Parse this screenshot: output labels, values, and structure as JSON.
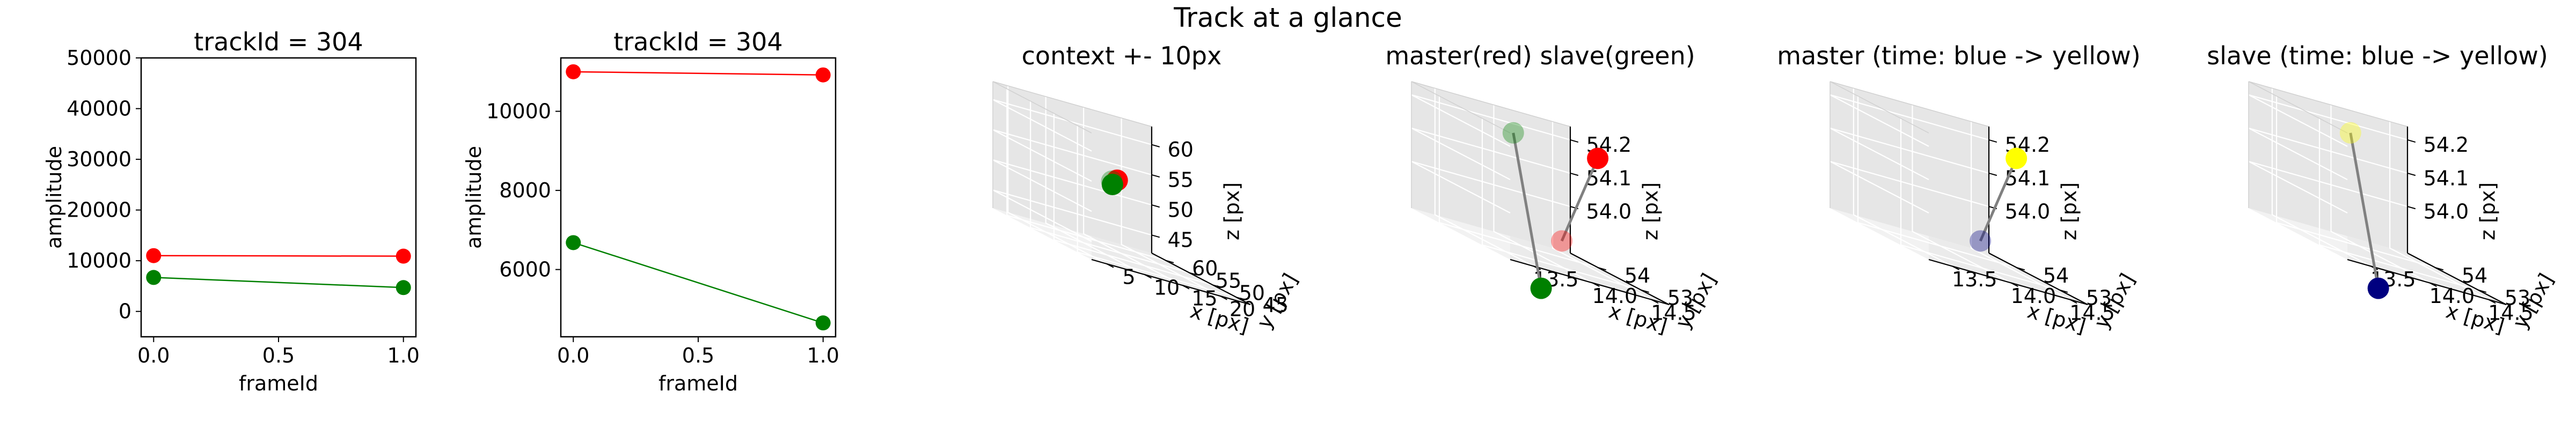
{
  "figure_title": "Track at a glance",
  "colors": {
    "red": "#ff0000",
    "green": "#008000",
    "gray": "#808080",
    "pane_left": "#f2f2f2",
    "pane_right": "#e6e6e6",
    "pane_floor": "#ebebeb"
  },
  "chart_data": [
    {
      "type": "line",
      "title": "trackId = 304",
      "xlabel": "frameId",
      "ylabel": "amplitude",
      "xlim": [
        -0.05,
        1.05
      ],
      "ylim": [
        -5000,
        50000
      ],
      "x_ticks": [
        0.0,
        0.5,
        1.0
      ],
      "x_tick_labels": [
        "0.0",
        "0.5",
        "1.0"
      ],
      "y_ticks": [
        0,
        10000,
        20000,
        30000,
        40000,
        50000
      ],
      "y_tick_labels": [
        "0",
        "10000",
        "20000",
        "30000",
        "40000",
        "50000"
      ],
      "series": [
        {
          "x": [
            0.0,
            1.0
          ],
          "values": [
            11000,
            10900
          ],
          "color": "#ff0000"
        },
        {
          "x": [
            0.0,
            1.0
          ],
          "values": [
            6700,
            4700
          ],
          "color": "#008000"
        }
      ]
    },
    {
      "type": "line",
      "title": "trackId = 304",
      "xlabel": "frameId",
      "ylabel": "amplitude",
      "xlim": [
        -0.05,
        1.05
      ],
      "ylim": [
        4300,
        11350
      ],
      "x_ticks": [
        0.0,
        0.5,
        1.0
      ],
      "x_tick_labels": [
        "0.0",
        "0.5",
        "1.0"
      ],
      "y_ticks": [
        6000,
        8000,
        10000
      ],
      "y_tick_labels": [
        "6000",
        "8000",
        "10000"
      ],
      "series": [
        {
          "x": [
            0.0,
            1.0
          ],
          "values": [
            11000,
            10920
          ],
          "color": "#ff0000"
        },
        {
          "x": [
            0.0,
            1.0
          ],
          "values": [
            6680,
            4650
          ],
          "color": "#008000"
        }
      ]
    },
    {
      "type": "scatter3d",
      "title": "context +- 10px",
      "xlabel": "x [px]",
      "ylabel": "y [px]",
      "zlabel": "z [px]",
      "xlim": [
        3,
        24
      ],
      "ylim": [
        42,
        63
      ],
      "zlim": [
        42,
        63
      ],
      "x_ticks": [
        5,
        10,
        15,
        20
      ],
      "x_tick_labels": [
        "5",
        "10",
        "15",
        "20"
      ],
      "y_ticks": [
        45,
        50,
        55,
        60
      ],
      "y_tick_labels": [
        "45",
        "50",
        "55",
        "60"
      ],
      "z_ticks": [
        45,
        50,
        55,
        60
      ],
      "z_tick_labels": [
        "45",
        "50",
        "55",
        "60"
      ],
      "points": [
        {
          "x": 13.6,
          "y": 53.6,
          "z": 54.2,
          "color": "#ff0000",
          "alpha": 1.0
        },
        {
          "x": 13.9,
          "y": 54.2,
          "z": 54.1,
          "color": "#ff0000",
          "alpha": 0.35
        },
        {
          "x": 12.5,
          "y": 53.0,
          "z": 53.9,
          "color": "#008000",
          "alpha": 0.35
        },
        {
          "x": 12.6,
          "y": 53.0,
          "z": 53.4,
          "color": "#008000",
          "alpha": 1.0
        }
      ],
      "segments": []
    },
    {
      "type": "scatter3d",
      "title": "master(red) slave(green)",
      "xlabel": "x [px]",
      "ylabel": "y [px]",
      "zlabel": "z [px]",
      "xlim": [
        13.3,
        14.65
      ],
      "ylim": [
        52.35,
        54.65
      ],
      "zlim": [
        53.86,
        54.24
      ],
      "x_ticks": [
        13.5,
        14.0,
        14.5
      ],
      "x_tick_labels": [
        "13.5",
        "14.0",
        "14.5"
      ],
      "y_ticks": [
        53,
        54
      ],
      "y_tick_labels": [
        "53",
        "54"
      ],
      "z_ticks": [
        54.0,
        54.1,
        54.2
      ],
      "z_tick_labels": [
        "54.0",
        "54.1",
        "54.2"
      ],
      "points": [
        {
          "x": 14.5,
          "y": 53.6,
          "z": 54.2,
          "color": "#ff0000",
          "alpha": 1.0
        },
        {
          "x": 14.45,
          "y": 54.3,
          "z": 53.9,
          "color": "#ff0000",
          "alpha": 0.35
        },
        {
          "x": 13.6,
          "y": 53.1,
          "z": 54.22,
          "color": "#008000",
          "alpha": 0.35
        },
        {
          "x": 13.8,
          "y": 53.0,
          "z": 53.78,
          "color": "#008000",
          "alpha": 1.0
        }
      ],
      "segments": [
        [
          0,
          1
        ],
        [
          2,
          3
        ]
      ]
    },
    {
      "type": "scatter3d",
      "title": "master (time: blue -> yellow)",
      "xlabel": "x [px]",
      "ylabel": "y [px]",
      "zlabel": "z [px]",
      "xlim": [
        13.3,
        14.65
      ],
      "ylim": [
        52.35,
        54.65
      ],
      "zlim": [
        53.86,
        54.24
      ],
      "x_ticks": [
        13.5,
        14.0,
        14.5
      ],
      "x_tick_labels": [
        "13.5",
        "14.0",
        "14.5"
      ],
      "y_ticks": [
        53,
        54
      ],
      "y_tick_labels": [
        "53",
        "54"
      ],
      "z_ticks": [
        54.0,
        54.1,
        54.2
      ],
      "z_tick_labels": [
        "54.0",
        "54.1",
        "54.2"
      ],
      "points": [
        {
          "x": 14.5,
          "y": 53.6,
          "z": 54.2,
          "color": "#ffff00",
          "alpha": 1.0
        },
        {
          "x": 14.45,
          "y": 54.3,
          "z": 53.9,
          "color": "#000080",
          "alpha": 0.35
        }
      ],
      "segments": [
        [
          0,
          1
        ]
      ]
    },
    {
      "type": "scatter3d",
      "title": "slave (time: blue -> yellow)",
      "xlabel": "x [px]",
      "ylabel": "y [px]",
      "zlabel": "z [px]",
      "xlim": [
        13.3,
        14.65
      ],
      "ylim": [
        52.35,
        54.65
      ],
      "zlim": [
        53.86,
        54.24
      ],
      "x_ticks": [
        13.5,
        14.0,
        14.5
      ],
      "x_tick_labels": [
        "13.5",
        "14.0",
        "14.5"
      ],
      "y_ticks": [
        53,
        54
      ],
      "y_tick_labels": [
        "53",
        "54"
      ],
      "z_ticks": [
        54.0,
        54.1,
        54.2
      ],
      "z_tick_labels": [
        "54.0",
        "54.1",
        "54.2"
      ],
      "points": [
        {
          "x": 13.6,
          "y": 53.1,
          "z": 54.22,
          "color": "#ffff00",
          "alpha": 0.35
        },
        {
          "x": 13.8,
          "y": 53.0,
          "z": 53.78,
          "color": "#000080",
          "alpha": 1.0
        }
      ],
      "segments": [
        [
          0,
          1
        ]
      ]
    }
  ]
}
